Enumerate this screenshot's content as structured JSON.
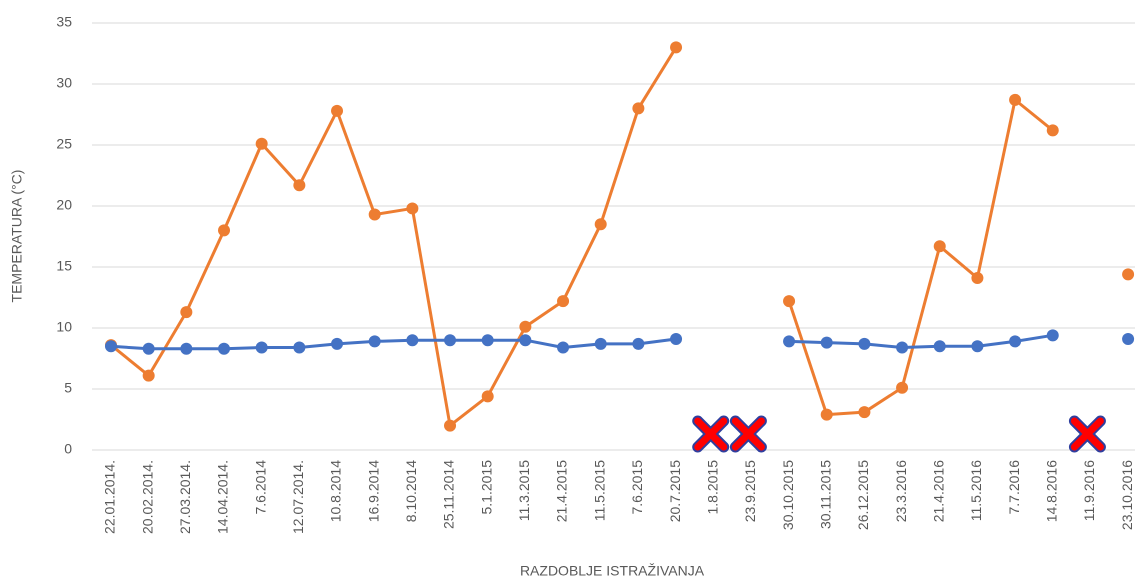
{
  "chart_data": {
    "type": "line",
    "y_label": "TEMPERATURA (°C)",
    "x_label": "RAZDOBLJE ISTRAŽIVANJA",
    "categories": [
      "22.01.2014.",
      "20.02.2014.",
      "27.03.2014.",
      "14.04.2014.",
      "7.6.2014",
      "12.07.2014.",
      "10.8.2014",
      "16.9.2014",
      "8.10.2014",
      "25.11.2014",
      "5.1.2015",
      "11.3.2015",
      "21.4.2015",
      "11.5.2015",
      "7.6.2015",
      "20.7.2015",
      "1.8.2015",
      "23.9.2015",
      "30.10.2015",
      "30.11.2015",
      "26.12.2015",
      "23.3.2016",
      "21.4.2016",
      "11.5.2016",
      "7.7.2016",
      "14.8.2016",
      "11.9.2016",
      "23.10.2016"
    ],
    "series": [
      {
        "color": "#ed7d31",
        "values": [
          8.6,
          6.1,
          11.3,
          18.0,
          25.1,
          21.7,
          27.8,
          19.3,
          19.8,
          2.0,
          4.4,
          10.1,
          12.2,
          18.5,
          28.0,
          33.0,
          null,
          null,
          12.2,
          2.9,
          3.1,
          5.1,
          16.7,
          14.1,
          28.7,
          26.2,
          null,
          14.4
        ]
      },
      {
        "color": "#4472c4",
        "values": [
          8.5,
          8.3,
          8.3,
          8.3,
          8.4,
          8.4,
          8.7,
          8.9,
          9.0,
          9.0,
          9.0,
          9.0,
          8.4,
          8.7,
          8.7,
          9.1,
          null,
          null,
          8.9,
          8.8,
          8.7,
          8.4,
          8.5,
          8.5,
          8.9,
          9.4,
          null,
          9.1
        ]
      }
    ],
    "ylim": [
      0,
      35
    ],
    "yticks": [
      0,
      5,
      10,
      15,
      20,
      25,
      30,
      35
    ],
    "grid": true
  }
}
